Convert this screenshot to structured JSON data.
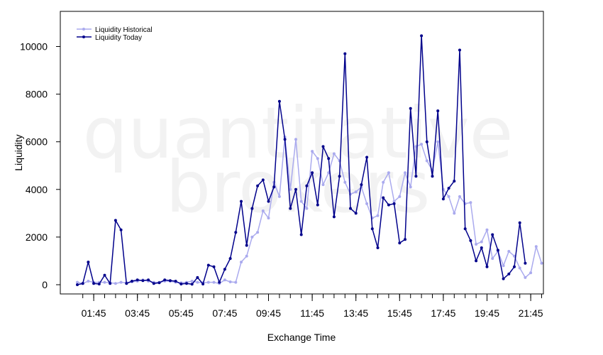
{
  "chart_data": {
    "type": "line",
    "xlabel": "Exchange Time",
    "ylabel": "Liquidity",
    "ylim": [
      -400,
      11500
    ],
    "yticks": [
      0,
      2000,
      4000,
      6000,
      8000,
      10000
    ],
    "x_tick_labels": [
      "01:45",
      "03:45",
      "05:45",
      "07:45",
      "09:45",
      "11:45",
      "13:45",
      "15:45",
      "17:45",
      "19:45",
      "21:45"
    ],
    "x_tick_times": [
      "01:45",
      "03:45",
      "05:45",
      "07:45",
      "09:45",
      "11:45",
      "13:45",
      "15:45",
      "17:45",
      "19:45",
      "21:45"
    ],
    "x_step_minutes": 15,
    "x_start": "01:00",
    "watermark": [
      "quantitative",
      "brokers"
    ],
    "legend_position": "top-left",
    "colors": {
      "historical": "#aaaaee",
      "today": "#00008b"
    },
    "series": [
      {
        "name": "Liquidity Historical",
        "values": [
          100,
          50,
          150,
          100,
          100,
          100,
          80,
          50,
          100,
          80,
          120,
          150,
          200,
          150,
          100,
          100,
          150,
          150,
          100,
          80,
          100,
          150,
          100,
          80,
          100,
          100,
          50,
          200,
          120,
          100,
          950,
          1200,
          2000,
          2200,
          3100,
          2800,
          4300,
          3700,
          6200,
          4000,
          6100,
          3500,
          3200,
          5600,
          5300,
          4200,
          4700,
          5500,
          5200,
          4300,
          3800,
          3900,
          4100,
          3400,
          2800,
          2900,
          4300,
          4700,
          3500,
          3700,
          4700,
          4100,
          5800,
          5900,
          5200,
          4800,
          6000,
          4000,
          3700,
          3000,
          3700,
          3400,
          3450,
          1700,
          1800,
          2300,
          1100,
          1400,
          800,
          1400,
          1200,
          700,
          300,
          500,
          1600,
          900
        ]
      },
      {
        "name": "Liquidity Today",
        "values": [
          0,
          50,
          950,
          50,
          30,
          400,
          50,
          2700,
          2300,
          50,
          150,
          200,
          170,
          200,
          50,
          80,
          200,
          170,
          150,
          30,
          50,
          20,
          300,
          30,
          820,
          750,
          100,
          650,
          1100,
          2200,
          3500,
          1650,
          3200,
          4150,
          4400,
          3500,
          4100,
          7700,
          6100,
          3200,
          4000,
          2100,
          4150,
          4700,
          3350,
          5800,
          5300,
          2850,
          4550,
          9700,
          3200,
          3000,
          4200,
          5350,
          2350,
          1550,
          3650,
          3350,
          3400,
          1750,
          1900,
          7400,
          4550,
          10450,
          6000,
          4550,
          7300,
          3600,
          4050,
          4350,
          9850,
          2350,
          1850,
          1000,
          1550,
          750,
          2100,
          1450,
          250,
          450,
          750,
          2600,
          900
        ]
      }
    ]
  }
}
